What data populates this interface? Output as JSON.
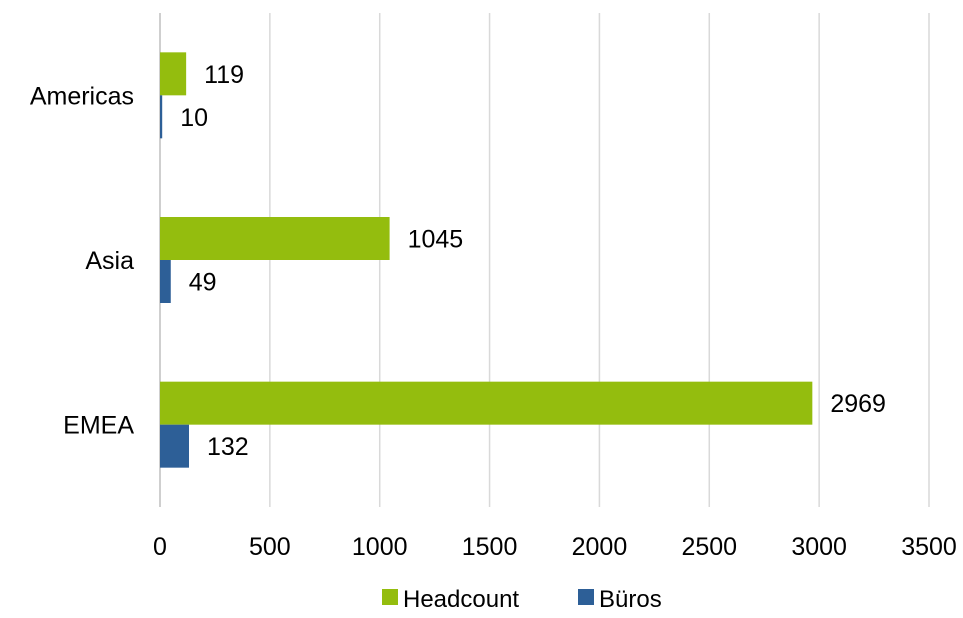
{
  "chart_data": {
    "type": "bar",
    "orientation": "horizontal",
    "categories": [
      "Americas",
      "Asia",
      "EMEA"
    ],
    "series": [
      {
        "name": "Headcount",
        "values": [
          119,
          1045,
          2969
        ],
        "color": "#94bd0e"
      },
      {
        "name": "Büros",
        "values": [
          10,
          49,
          132
        ],
        "color": "#2d5f97"
      }
    ],
    "xlim": [
      0,
      3500
    ],
    "x_ticks": [
      0,
      500,
      1000,
      1500,
      2000,
      2500,
      3000,
      3500
    ],
    "title": "",
    "xlabel": "",
    "ylabel": "",
    "grid": "vertical",
    "legend_position": "bottom",
    "gridline_color": "#d9d9d9"
  }
}
